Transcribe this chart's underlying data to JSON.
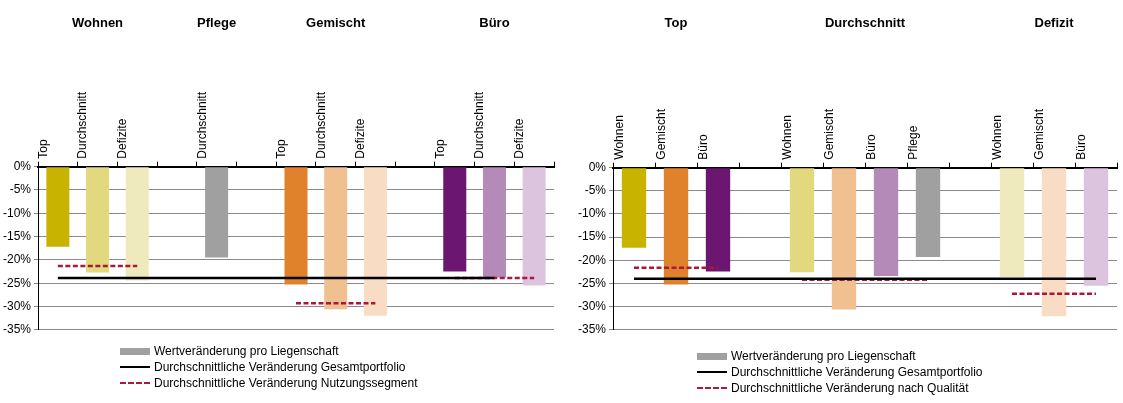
{
  "chart_data": [
    {
      "type": "bar",
      "annotations": [
        "Wohnen",
        "Pflege",
        "Gemischt",
        "Büro"
      ],
      "categories": [
        "Top",
        "Durchschnitt",
        "Defizite",
        null,
        "Durchschnitt",
        null,
        "Top",
        "Durchschnitt",
        "Defizite",
        null,
        "Top",
        "Durchschnitt",
        "Defizite"
      ],
      "series": [
        {
          "name": "Wertveränderung pro Liegenschaft",
          "color": "#a0a0a0",
          "colors": [
            "#c8b400",
            "#e2d87e",
            "#efe9be",
            null,
            "#a0a0a0",
            null,
            "#e0822c",
            "#f0c090",
            "#f8dcc4",
            null,
            "#6b1670",
            "#b38ab8",
            "#dcc4de"
          ],
          "values": [
            -17.2,
            -22.7,
            -24.4,
            null,
            -19.5,
            null,
            -25.3,
            -30.6,
            -32.0,
            null,
            -22.5,
            -23.8,
            -25.5
          ]
        },
        {
          "name": "Durchschnittliche Veränderung Gesamtportfolio",
          "type": "line",
          "color": "#000000",
          "line_style": "solid",
          "values": [
            -23.9,
            -23.9,
            -23.9,
            -23.9,
            -23.9,
            -23.9,
            -23.9,
            -23.9,
            -23.9,
            -23.9,
            -23.9,
            -23.9,
            null
          ]
        },
        {
          "name": "Durchschnittliche Veränderung Nutzungssegment",
          "type": "line",
          "color": "#a8193c",
          "line_style": "dashed",
          "values": [
            -21.3,
            -21.3,
            -21.3,
            null,
            null,
            null,
            -29.3,
            -29.3,
            -29.3,
            null,
            -23.9,
            -23.9,
            -23.9
          ]
        }
      ],
      "ylim": [
        -35,
        0
      ],
      "yticks": [
        {
          "value": 0,
          "label": "0%"
        },
        {
          "value": -5,
          "label": "-5%"
        },
        {
          "value": -10,
          "label": "-10%"
        },
        {
          "value": -15,
          "label": "-15%"
        },
        {
          "value": -20,
          "label": "-20%"
        },
        {
          "value": -25,
          "label": "-25%"
        },
        {
          "value": -30,
          "label": "-30%"
        },
        {
          "value": -35,
          "label": "-35%"
        }
      ],
      "grid": "y",
      "legend": "bottom",
      "marker": "none"
    },
    {
      "type": "bar",
      "annotations": [
        "Top",
        "Durchschnitt",
        "Defizit"
      ],
      "categories": [
        "Wohnen",
        "Gemischt",
        "Büro",
        null,
        "Wohnen",
        "Gemischt",
        "Büro",
        "Pflege",
        null,
        "Wohnen",
        "Gemischt",
        "Büro"
      ],
      "series": [
        {
          "name": "Wertveränderung pro Liegenschaft",
          "color": "#a0a0a0",
          "colors": [
            "#c8b400",
            "#e0822c",
            "#6b1670",
            null,
            "#e2d87e",
            "#f0c090",
            "#b38ab8",
            "#a0a0a0",
            null,
            "#efe9be",
            "#f8dcc4",
            "#dcc4de"
          ],
          "values": [
            -17.3,
            -25.2,
            -22.4,
            null,
            -22.6,
            -30.6,
            -23.4,
            -19.3,
            null,
            -23.6,
            -32.1,
            -25.5
          ]
        },
        {
          "name": "Durchschnittliche Veränderung Gesamtportfolio",
          "type": "line",
          "color": "#000000",
          "line_style": "solid",
          "values": [
            -24.0,
            -24.0,
            -24.0,
            -24.0,
            -24.0,
            -24.0,
            -24.0,
            -24.0,
            -24.0,
            -24.0,
            -24.0,
            -24.0
          ]
        },
        {
          "name": "Durchschnittliche Veränderung nach Qualität",
          "type": "line",
          "color": "#a8193c",
          "line_style": "dashed",
          "values": [
            -21.6,
            -21.6,
            -21.6,
            null,
            -24.2,
            -24.2,
            -24.2,
            -24.2,
            null,
            -27.2,
            -27.2,
            -27.2
          ]
        }
      ],
      "ylim": [
        -35,
        0
      ],
      "yticks": [
        {
          "value": 0,
          "label": "0%"
        },
        {
          "value": -5,
          "label": "-5%"
        },
        {
          "value": -10,
          "label": "-10%"
        },
        {
          "value": -15,
          "label": "-15%"
        },
        {
          "value": -20,
          "label": "-20%"
        },
        {
          "value": -25,
          "label": "-25%"
        },
        {
          "value": -30,
          "label": "-30%"
        },
        {
          "value": -35,
          "label": "-35%"
        }
      ],
      "grid": "y",
      "legend": "bottom",
      "marker": "none"
    }
  ]
}
